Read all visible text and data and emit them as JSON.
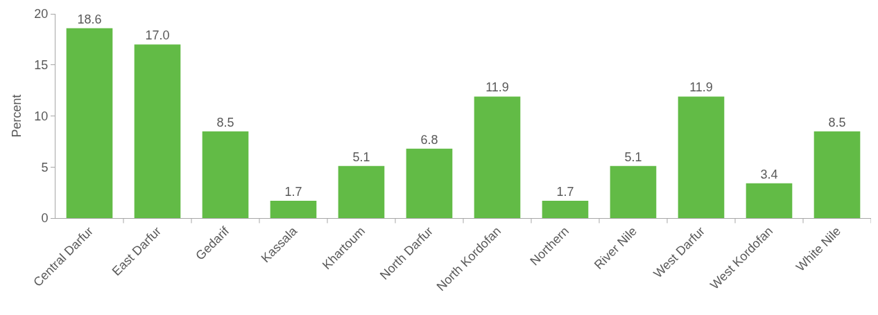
{
  "chart_data": {
    "type": "bar",
    "ylabel": "Percent",
    "categories": [
      "Central Darfur",
      "East Darfur",
      "Gedarif",
      "Kassala",
      "Khartoum",
      "North Darfur",
      "North Kordofan",
      "Northern",
      "River Nile",
      "West Darfur",
      "West Kordofan",
      "White Nile"
    ],
    "values": [
      18.6,
      17.0,
      8.5,
      1.7,
      5.1,
      6.8,
      11.9,
      1.7,
      5.1,
      11.9,
      3.4,
      8.5
    ],
    "value_labels": [
      "18.6",
      "17.0",
      "8.5",
      "1.7",
      "5.1",
      "6.8",
      "11.9",
      "1.7",
      "5.1",
      "11.9",
      "3.4",
      "8.5"
    ],
    "color": "#62bb46",
    "ylim": [
      0,
      20
    ],
    "yticks": [
      0,
      5,
      10,
      15,
      20
    ],
    "grid": false,
    "legend": false
  }
}
